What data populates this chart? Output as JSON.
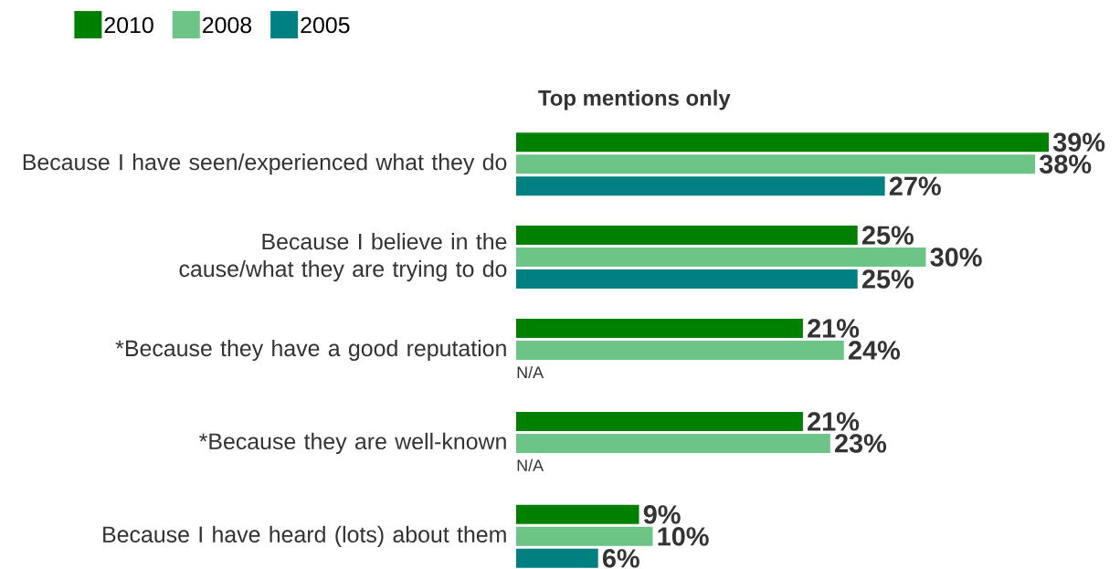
{
  "chart_data": {
    "type": "bar",
    "orientation": "horizontal",
    "title": "Top mentions only",
    "categories": [
      "Because I have seen/experienced what they do",
      "Because I believe in the cause/what they are trying to do",
      "*Because they have a good reputation",
      "*Because they are well-known",
      "Because I have heard (lots) about them"
    ],
    "series": [
      {
        "name": "2010",
        "color": "#008000",
        "values": [
          39,
          25,
          21,
          21,
          9
        ],
        "value_labels": [
          "39%",
          "25%",
          "21%",
          "21%",
          "9%"
        ]
      },
      {
        "name": "2008",
        "color": "#6cc586",
        "values": [
          38,
          30,
          24,
          23,
          10
        ],
        "value_labels": [
          "38%",
          "30%",
          "24%",
          "23%",
          "10%"
        ]
      },
      {
        "name": "2005",
        "color": "#008080",
        "values": [
          27,
          25,
          null,
          null,
          6
        ],
        "value_labels": [
          "27%",
          "25%",
          "N/A",
          "N/A",
          "6%"
        ]
      }
    ],
    "xlim": [
      0,
      39
    ],
    "tick_labels": "y",
    "legend": "top left"
  }
}
